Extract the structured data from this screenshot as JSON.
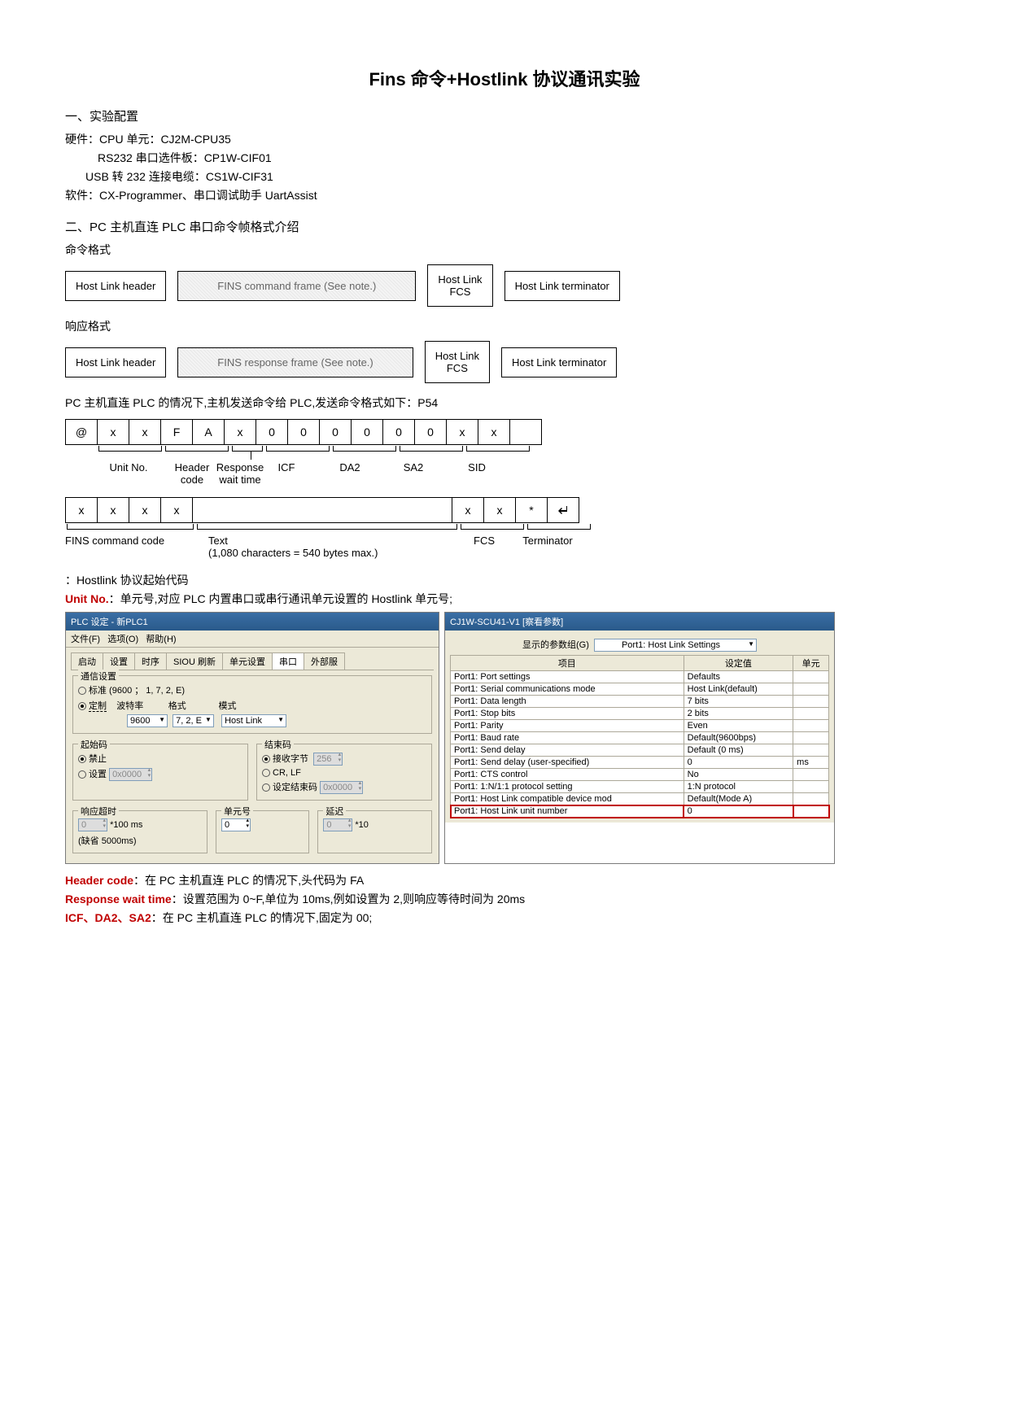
{
  "title": "Fins 命令+Hostlink 协议通讯实验",
  "s1_title": "一、实验配置",
  "hw1": "硬件：CPU 单元：CJ2M-CPU35",
  "hw2": "RS232 串口选件板：CP1W-CIF01",
  "hw3": "USB 转 232 连接电缆：CS1W-CIF31",
  "sw": "软件：CX-Programmer、串口调试助手 UartAssist",
  "s2_title": "二、PC 主机直连 PLC 串口命令帧格式介绍",
  "cmd_fmt": "命令格式",
  "resp_fmt": "响应格式",
  "frame": {
    "header": "Host Link header",
    "cmd": "FINS command frame (See note.)",
    "resp": "FINS response frame (See note.)",
    "fcs": "Host Link\nFCS",
    "term": "Host Link terminator"
  },
  "p54": "PC 主机直连 PLC 的情况下,主机发送命令给 PLC,发送命令格式如下：P54",
  "bytes1": [
    "@",
    "x",
    "x",
    "F",
    "A",
    "x",
    "0",
    "0",
    "0",
    "0",
    "0",
    "0",
    "x",
    "x",
    ""
  ],
  "labels1": {
    "unit": "Unit No.",
    "hcode": "Header\ncode",
    "rwt": "Response\nwait time",
    "icf": "ICF",
    "da2": "DA2",
    "sa2": "SA2",
    "sid": "SID"
  },
  "bytes2_left": [
    "x",
    "x",
    "x",
    "x"
  ],
  "bytes2_right": [
    "x",
    "x",
    "*",
    "↵"
  ],
  "labels2": {
    "fins": "FINS command code",
    "text": "Text\n(1,080 characters = 540 bytes max.)",
    "fcs": "FCS",
    "term": "Terminator"
  },
  "hostlink_note": "：Hostlink 协议起始代码",
  "unitno_label": "Unit No.",
  "unitno_text": "：单元号,对应 PLC 内置串口或串行通讯单元设置的 Hostlink 单元号;",
  "win1": {
    "title": "PLC 设定 - 新PLC1",
    "menu": [
      "文件(F)",
      "选项(O)",
      "帮助(H)"
    ],
    "tabs": [
      "启动",
      "设置",
      "时序",
      "SIOU 刷新",
      "单元设置",
      "串口",
      "外部服"
    ],
    "comm_group": "通信设置",
    "std": "标准 (9600 ； 1, 7, 2, E)",
    "custom": "定制",
    "baud_lbl": "波特率",
    "baud": "9600",
    "fmt_lbl": "格式",
    "fmt": "7, 2, E",
    "mode_lbl": "模式",
    "mode": "Host Link",
    "start_group": "起始码",
    "end_group": "结束码",
    "disable": "禁止",
    "set": "设置",
    "set_val": "0x0000",
    "recv": "接收字节",
    "recv_val": "256",
    "crlf": "CR, LF",
    "endcode": "设定结束码",
    "endcode_val": "0x0000",
    "resp_group": "响应超时",
    "unit_group": "单元号",
    "delay_group": "延迟",
    "resp_val": "0",
    "resp_unit": "*100 ms",
    "unit_val": "0",
    "delay_val": "0",
    "delay_unit": "*10",
    "default": "(缺省 5000ms)"
  },
  "win2": {
    "title": "CJ1W-SCU41-V1 [察看参数]",
    "show_lbl": "显示的参数组(G)",
    "show_val": "Port1: Host Link Settings",
    "cols": [
      "项目",
      "设定值",
      "单元"
    ],
    "rows": [
      [
        "Port1: Port settings",
        "Defaults",
        ""
      ],
      [
        "Port1: Serial communications mode",
        "Host Link(default)",
        ""
      ],
      [
        "Port1: Data length",
        "7 bits",
        ""
      ],
      [
        "Port1: Stop bits",
        "2 bits",
        ""
      ],
      [
        "Port1: Parity",
        "Even",
        ""
      ],
      [
        "Port1: Baud rate",
        "Default(9600bps)",
        ""
      ],
      [
        "Port1: Send delay",
        "Default (0 ms)",
        ""
      ],
      [
        "Port1: Send delay (user-specified)",
        "0",
        "ms"
      ],
      [
        "Port1: CTS control",
        "No",
        ""
      ],
      [
        "Port1: 1:N/1:1 protocol setting",
        "1:N protocol",
        ""
      ],
      [
        "Port1: Host Link compatible device mod",
        "Default(Mode A)",
        ""
      ],
      [
        "Port1: Host Link unit number",
        "0",
        ""
      ]
    ]
  },
  "hc_lbl": "Header code",
  "hc_txt": "：在 PC 主机直连 PLC 的情况下,头代码为 FA",
  "rwt_lbl": "Response wait time",
  "rwt_txt": "：设置范围为 0~F,单位为 10ms,例如设置为 2,则响应等待时间为 20ms",
  "ids_lbl": "ICF、DA2、SA2",
  "ids_txt": "：在 PC 主机直连 PLC 的情况下,固定为 00;"
}
